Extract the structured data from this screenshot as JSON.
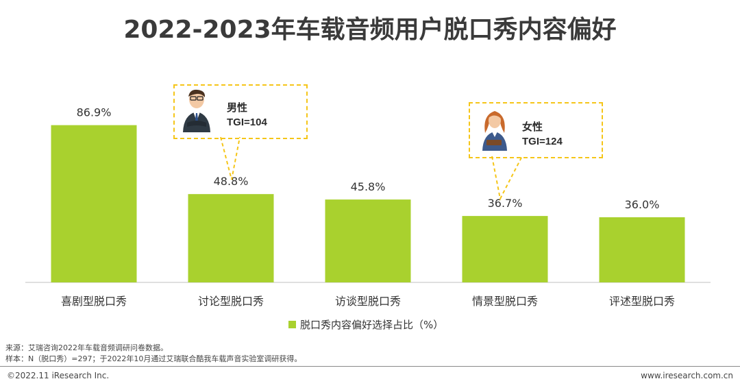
{
  "title": "2022-2023年车载音频用户脱口秀内容偏好",
  "chart_data": {
    "type": "bar",
    "categories": [
      "喜剧型脱口秀",
      "讨论型脱口秀",
      "访谈型脱口秀",
      "情景型脱口秀",
      "评述型脱口秀"
    ],
    "series": [
      {
        "name": "脱口秀内容偏好选择占比（%）",
        "values": [
          86.9,
          48.8,
          45.8,
          36.7,
          36.0
        ]
      }
    ],
    "value_labels": [
      "86.9%",
      "48.8%",
      "45.8%",
      "36.7%",
      "36.0%"
    ],
    "ylim": [
      0,
      100
    ],
    "grid": false,
    "legend_position": "bottom",
    "bar_color": "#a9d12e"
  },
  "callouts": {
    "male": {
      "line1": "男性",
      "line2": "TGI=104",
      "icon": "businessman-icon"
    },
    "female": {
      "line1": "女性",
      "line2": "TGI=124",
      "icon": "businesswoman-icon"
    }
  },
  "legend": {
    "label": "脱口秀内容偏好选择占比（%）"
  },
  "source": {
    "line1": "来源：艾瑞咨询2022年车载音频调研问卷数据。",
    "line2": "样本：N（脱口秀）=297；于2022年10月通过艾瑞联合酷我车载声音实验室调研获得。"
  },
  "footer": {
    "copyright": "©2022.11 iResearch Inc.",
    "website": "www.iresearch.com.cn"
  },
  "colors": {
    "bar": "#a9d12e",
    "callout_border": "#f5c518",
    "title": "#3a3a3a"
  }
}
